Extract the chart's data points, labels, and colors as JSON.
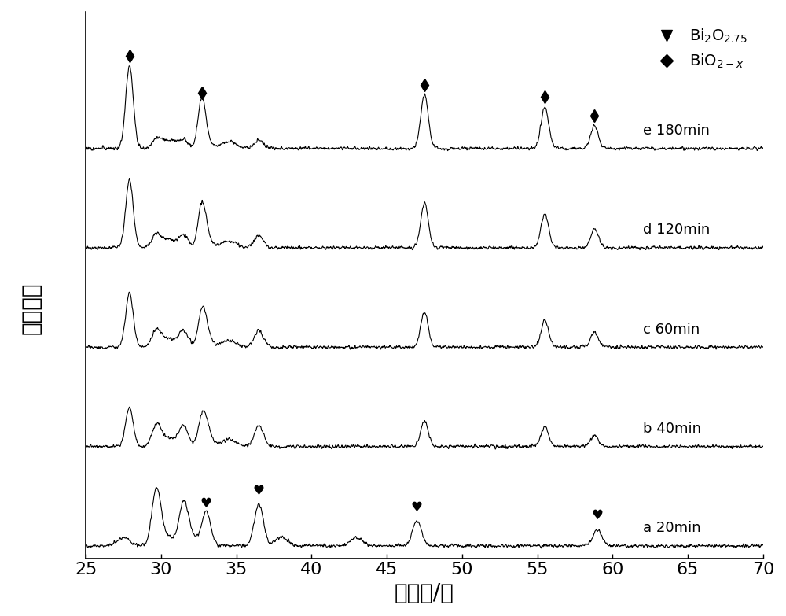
{
  "xmin": 25,
  "xmax": 70,
  "xlabel": "衍射角/度",
  "ylabel": "衍射强度",
  "background_color": "#ffffff",
  "line_color": "#000000",
  "series_labels": [
    "a 20min",
    "b 40min",
    "c 60min",
    "d 120min",
    "e 180min"
  ],
  "offsets": [
    0,
    1.2,
    2.4,
    3.6,
    4.8
  ],
  "bio2x_peaks": [
    27.9,
    32.7,
    47.5,
    55.5,
    58.8
  ],
  "bi2o275_peaks": [
    29.7,
    36.5,
    47.0,
    59.0
  ],
  "legend_heart_label": "Bi₂O₂.₇₅",
  "legend_diamond_label": "BiO₂₋ₓ",
  "xlim": [
    25,
    70
  ],
  "xticks": [
    25,
    30,
    35,
    40,
    45,
    50,
    55,
    60,
    65,
    70
  ],
  "fontsize_axis_label": 20,
  "fontsize_tick": 16
}
